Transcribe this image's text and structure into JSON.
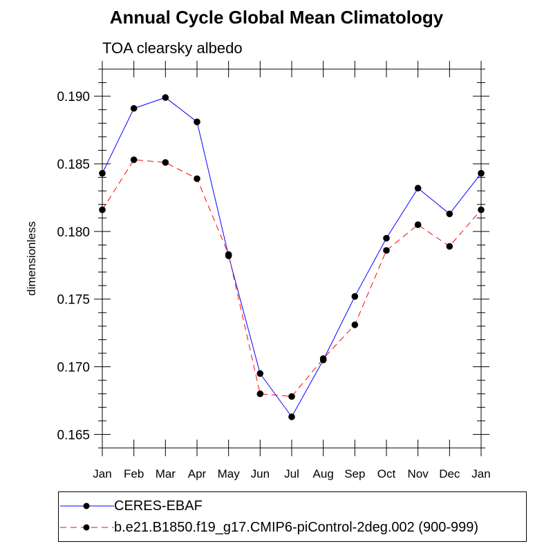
{
  "chart_data": {
    "type": "line",
    "title": "Annual Cycle Global Mean Climatology",
    "subtitle": "TOA clearsky albedo",
    "ylabel": "dimensionless",
    "xlabel": "",
    "categories": [
      "Jan",
      "Feb",
      "Mar",
      "Apr",
      "May",
      "Jun",
      "Jul",
      "Aug",
      "Sep",
      "Oct",
      "Nov",
      "Dec",
      "Jan"
    ],
    "ylim": [
      0.164,
      0.192
    ],
    "yticks": [
      0.165,
      0.17,
      0.175,
      0.18,
      0.185,
      0.19
    ],
    "ytick_labels": [
      "0.165",
      "0.170",
      "0.175",
      "0.180",
      "0.185",
      "0.190"
    ],
    "grid": false,
    "legend_position": "bottom",
    "series": [
      {
        "name": "CERES-EBAF",
        "color": "#0000ff",
        "line_style": "solid",
        "marker": "circle",
        "values": [
          0.1843,
          0.1891,
          0.1899,
          0.1881,
          0.1782,
          0.1695,
          0.1663,
          0.1705,
          0.1752,
          0.1795,
          0.1832,
          0.1813,
          0.1843
        ]
      },
      {
        "name": "b.e21.B1850.f19_g17.CMIP6-piControl-2deg.002 (900-999)",
        "color": "#ff0000",
        "line_style": "dashed",
        "marker": "circle",
        "values": [
          0.1816,
          0.1853,
          0.1851,
          0.1839,
          0.1783,
          0.168,
          0.1678,
          0.1706,
          0.1731,
          0.1786,
          0.1805,
          0.1789,
          0.1816
        ]
      }
    ]
  }
}
